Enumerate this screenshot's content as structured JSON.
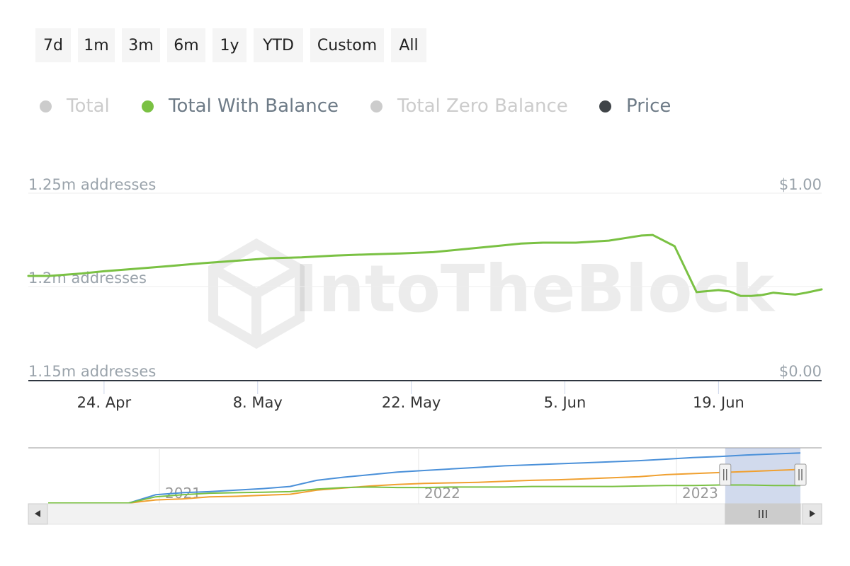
{
  "range_buttons": [
    "7d",
    "1m",
    "3m",
    "6m",
    "1y",
    "YTD",
    "Custom",
    "All"
  ],
  "legend": [
    {
      "label": "Total",
      "color": "#cccccc",
      "active": false
    },
    {
      "label": "Total With Balance",
      "color": "#7ac143",
      "active": true
    },
    {
      "label": "Total Zero Balance",
      "color": "#cccccc",
      "active": false
    },
    {
      "label": "Price",
      "color": "#3f4448",
      "active": true
    }
  ],
  "watermark": "IntoTheBlock",
  "chart_data": {
    "type": "line",
    "title": "",
    "xlabel": "",
    "ylabel": "",
    "x_ticks": [
      "24. Apr",
      "8. May",
      "22. May",
      "5. Jun",
      "19. Jun"
    ],
    "y_left_ticks": [
      "1.15m addresses",
      "1.2m addresses",
      "1.25m addresses"
    ],
    "y_right_ticks": [
      "$0.00",
      "$1.00"
    ],
    "ylim": [
      1150000,
      1250000
    ],
    "x_range_days": [
      -6.9,
      65.4
    ],
    "series": [
      {
        "name": "Total With Balance",
        "color": "#7ac143",
        "days": [
          -6.9,
          -5.0,
          -2.0,
          0,
          3,
          6,
          9,
          12,
          15,
          18,
          21,
          24,
          27,
          30,
          33,
          36,
          38,
          40,
          43,
          46,
          49,
          50,
          52,
          54,
          56,
          57,
          58,
          59,
          60,
          61,
          62,
          63,
          64,
          65.4
        ],
        "values": [
          1205700,
          1205700,
          1207000,
          1208200,
          1209600,
          1211000,
          1212500,
          1213800,
          1215100,
          1215600,
          1216600,
          1217200,
          1217700,
          1218400,
          1220100,
          1221800,
          1223000,
          1223500,
          1223500,
          1224600,
          1227300,
          1227600,
          1221600,
          1197000,
          1198100,
          1197400,
          1195000,
          1195000,
          1195500,
          1196700,
          1196100,
          1195700,
          1196700,
          1198500
        ]
      }
    ]
  },
  "navigator": {
    "year_labels": [
      "2021",
      "2022",
      "2023"
    ],
    "series": [
      {
        "name": "Total",
        "color": "#4a90d9",
        "values": [
          0.0,
          0.0,
          0.0,
          0.0,
          0.16,
          0.2,
          0.22,
          0.25,
          0.28,
          0.32,
          0.44,
          0.5,
          0.55,
          0.6,
          0.63,
          0.66,
          0.69,
          0.72,
          0.74,
          0.76,
          0.78,
          0.8,
          0.82,
          0.85,
          0.88,
          0.9,
          0.93,
          0.95,
          0.97
        ]
      },
      {
        "name": "Total Zero Balance",
        "color": "#f0a030",
        "values": [
          0.0,
          0.0,
          0.0,
          0.0,
          0.06,
          0.08,
          0.12,
          0.13,
          0.15,
          0.17,
          0.25,
          0.29,
          0.33,
          0.36,
          0.38,
          0.39,
          0.4,
          0.42,
          0.44,
          0.45,
          0.47,
          0.49,
          0.51,
          0.55,
          0.57,
          0.59,
          0.61,
          0.63,
          0.65
        ]
      },
      {
        "name": "Total With Balance",
        "color": "#7ac143",
        "values": [
          0.0,
          0.0,
          0.0,
          0.0,
          0.12,
          0.16,
          0.19,
          0.2,
          0.21,
          0.22,
          0.27,
          0.3,
          0.31,
          0.3,
          0.3,
          0.31,
          0.31,
          0.31,
          0.32,
          0.32,
          0.32,
          0.32,
          0.33,
          0.34,
          0.34,
          0.35,
          0.35,
          0.34,
          0.34
        ]
      }
    ],
    "selection_start_fraction": 0.9,
    "selection_end_fraction": 1.0
  }
}
